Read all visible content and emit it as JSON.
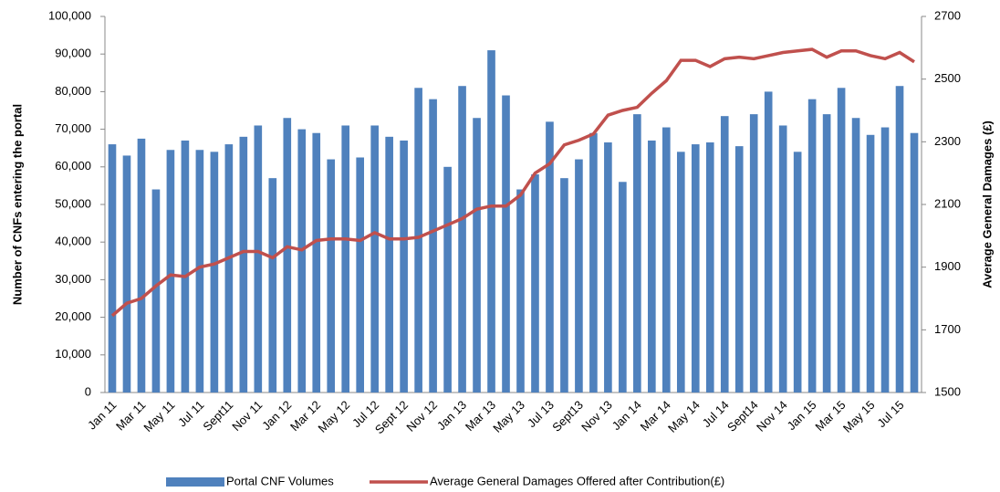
{
  "chart_data": {
    "type": "bar-line",
    "categories": [
      "Jan 11",
      null,
      "Mar 11",
      null,
      "May 11",
      null,
      "Jul 11",
      null,
      "Sept11",
      null,
      "Nov 11",
      null,
      "Jan 12",
      null,
      "Mar 12",
      null,
      "May 12",
      null,
      "Jul 12",
      null,
      "Sept 12",
      null,
      "Nov 12",
      null,
      "Jan 13",
      null,
      "Mar 13",
      null,
      "May 13",
      null,
      "Jul 13",
      null,
      "Sept13",
      null,
      "Nov 13",
      null,
      "Jan 14",
      null,
      "Mar 14",
      null,
      "May 14",
      null,
      "Jul 14",
      null,
      "Sept14",
      null,
      "Nov 14",
      null,
      "Jan 15",
      null,
      "Mar 15",
      null,
      "May 15",
      null,
      "Jul 15",
      null
    ],
    "series": [
      {
        "name": "Portal CNF Volumes",
        "type": "bar",
        "color": "#4f81bd",
        "values": [
          66000,
          63000,
          67500,
          54000,
          64500,
          67000,
          64500,
          64000,
          66000,
          68000,
          71000,
          57000,
          73000,
          70000,
          69000,
          62000,
          71000,
          62500,
          71000,
          68000,
          67000,
          81000,
          78000,
          60000,
          81500,
          73000,
          91000,
          79000,
          54000,
          58000,
          72000,
          57000,
          62000,
          69000,
          66500,
          56000,
          74000,
          67000,
          70500,
          64000,
          66000,
          66500,
          73500,
          65500,
          74000,
          80000,
          71000,
          64000,
          78000,
          74000,
          81000,
          73000,
          68500,
          70500,
          81500,
          69000
        ]
      },
      {
        "name": "Average General Damages  Offered after Contribution(£)",
        "type": "line",
        "axis": "y2",
        "color": "#c0504d",
        "values": [
          1745,
          1785,
          1800,
          1840,
          1875,
          1870,
          1900,
          1910,
          1930,
          1950,
          1950,
          1930,
          1965,
          1955,
          1985,
          1990,
          1990,
          1985,
          2010,
          1990,
          1990,
          1995,
          2015,
          2035,
          2055,
          2085,
          2095,
          2095,
          2130,
          2200,
          2230,
          2290,
          2305,
          2325,
          2385,
          2400,
          2410,
          2455,
          2495,
          2560,
          2560,
          2540,
          2565,
          2570,
          2565,
          2575,
          2585,
          2590,
          2595,
          2570,
          2590,
          2590,
          2575,
          2565,
          2585,
          2555
        ]
      }
    ],
    "y_label": "Number of CNFs entering the portal",
    "y2_label": "Average General Damages  (£)",
    "ylim": [
      0,
      100000
    ],
    "yticks": [
      0,
      {
        "value": 10000,
        "label": "10,000"
      },
      {
        "value": 20000,
        "label": "20,000"
      },
      {
        "value": 30000,
        "label": "30,000"
      },
      {
        "value": 40000,
        "label": "40,000"
      },
      {
        "value": 50000,
        "label": "50,000"
      },
      {
        "value": 60000,
        "label": "60,000"
      },
      {
        "value": 70000,
        "label": "70,000"
      },
      {
        "value": 80000,
        "label": "80,000"
      },
      {
        "value": 90000,
        "label": "90,000"
      },
      {
        "value": 100000,
        "label": "100,000"
      }
    ],
    "y2lim": [
      1500,
      2700
    ],
    "y2ticks": [
      1500,
      1700,
      1900,
      2100,
      2300,
      2500,
      2700
    ],
    "legend": "bottom"
  }
}
